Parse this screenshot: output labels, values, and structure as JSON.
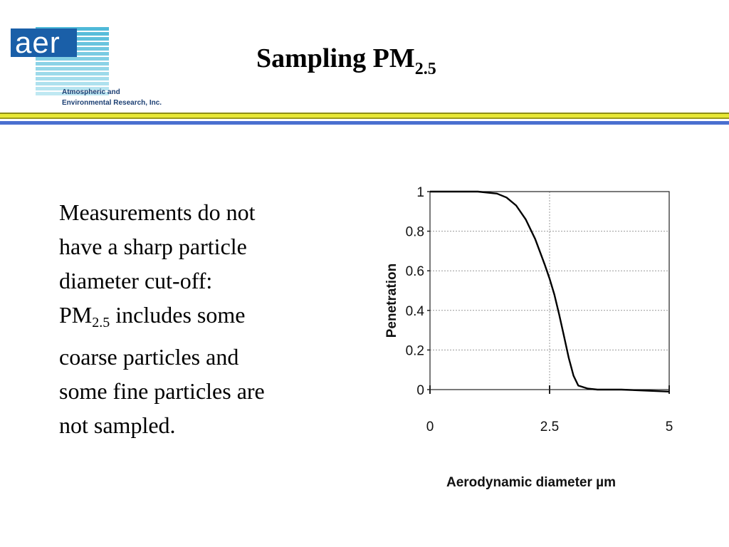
{
  "logo": {
    "text": "aer",
    "line1": "Atmospheric and",
    "line2": "Environmental Research, Inc.",
    "colors": {
      "box": "#1a5fa8",
      "stripes_top": "#4fb9d8",
      "stripes_bottom": "#bfe8f2",
      "text": "#1c3f73"
    }
  },
  "title": {
    "main": "Sampling PM",
    "subscript": "2.5"
  },
  "divider_colors": [
    "#8d8d17",
    "#e8e836",
    "#9b9b20",
    "#4a6fd0"
  ],
  "body": {
    "lines": [
      "Measurements do not",
      "have a sharp particle",
      "diameter cut-off:"
    ],
    "pm_prefix": "PM",
    "pm_sub": "2.5",
    "pm_suffix": " includes some",
    "lines_after": [
      "coarse particles and",
      "some fine particles are",
      "not sampled."
    ]
  },
  "chart_data": {
    "type": "line",
    "xlabel": "Aerodynamic diameter µm",
    "ylabel": "Penetration",
    "xlim": [
      0,
      5
    ],
    "ylim": [
      0,
      1
    ],
    "x_ticks": [
      0,
      2.5,
      5
    ],
    "x_tick_labels": [
      "0",
      "2.5",
      "5"
    ],
    "y_ticks": [
      0,
      0.2,
      0.4,
      0.6,
      0.8,
      1
    ],
    "y_tick_labels": [
      "0",
      "0.2",
      "0.4",
      "0.6",
      "0.8",
      "1"
    ],
    "grid": true,
    "series": [
      {
        "x": [
          0,
          0.5,
          1.0,
          1.4,
          1.6,
          1.8,
          2.0,
          2.2,
          2.4,
          2.5,
          2.6,
          2.7,
          2.8,
          2.9,
          3.0,
          3.1,
          3.3,
          3.5,
          4.0,
          5.0
        ],
        "y": [
          1.0,
          1.0,
          1.0,
          0.99,
          0.97,
          0.93,
          0.86,
          0.76,
          0.63,
          0.56,
          0.48,
          0.38,
          0.27,
          0.16,
          0.07,
          0.02,
          0.005,
          0.0,
          0.0,
          -0.01
        ]
      }
    ]
  }
}
